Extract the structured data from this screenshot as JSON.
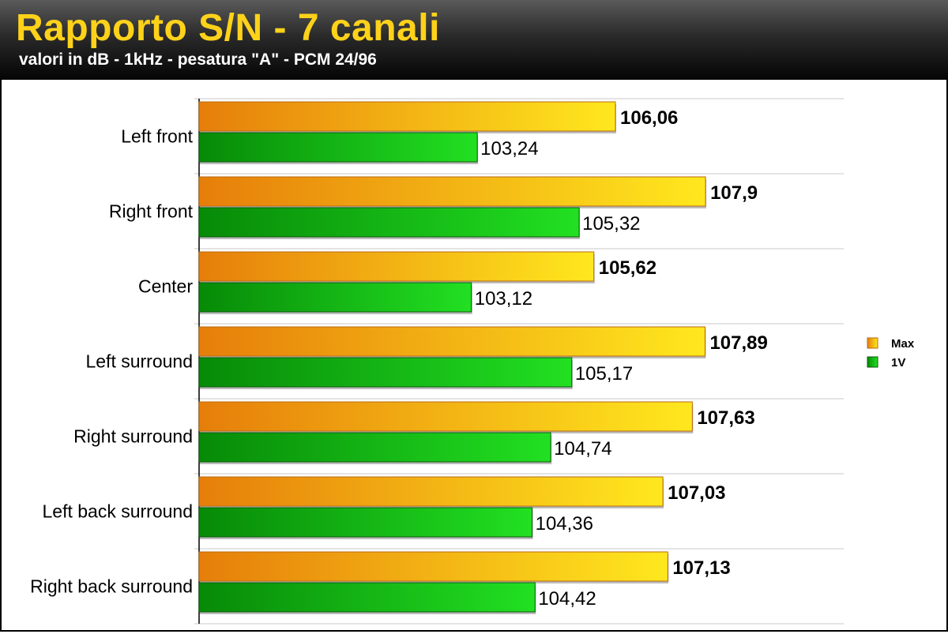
{
  "header": {
    "title": "Rapporto S/N - 7 canali",
    "subtitle": "valori in dB - 1kHz - pesatura \"A\" - PCM 24/96"
  },
  "colors": {
    "max_start": "#e67e0a",
    "max_end": "#ffe81e",
    "v1_start": "#078a07",
    "v1_end": "#22e022",
    "title": "#ffd21a"
  },
  "chart_data": {
    "type": "bar",
    "orientation": "horizontal",
    "categories": [
      "Left front",
      "Right front",
      "Center",
      "Left surround",
      "Right surround",
      "Left back surround",
      "Right back surround"
    ],
    "series": [
      {
        "name": "Max",
        "values": [
          106.06,
          107.9,
          105.62,
          107.89,
          107.63,
          107.03,
          107.13
        ],
        "labels": [
          "106,06",
          "107,9",
          "105,62",
          "107,89",
          "107,63",
          "107,03",
          "107,13"
        ]
      },
      {
        "name": "1V",
        "values": [
          103.24,
          105.32,
          103.12,
          105.17,
          104.74,
          104.36,
          104.42
        ],
        "labels": [
          "103,24",
          "105,32",
          "103,12",
          "105,17",
          "104,74",
          "104,36",
          "104,42"
        ]
      }
    ],
    "legend": "right",
    "grid": true
  }
}
